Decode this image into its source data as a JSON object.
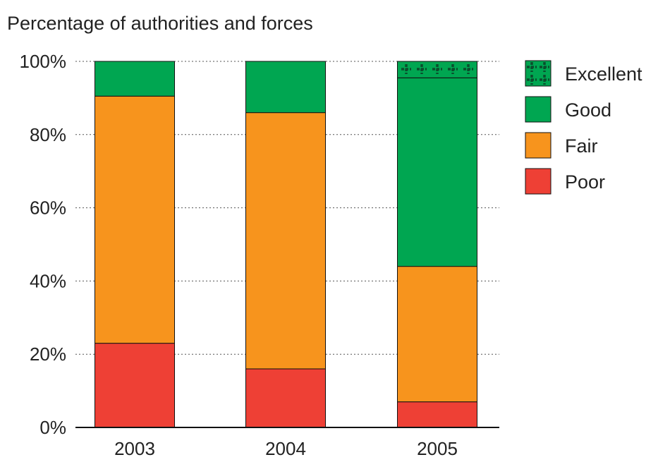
{
  "chart_data": {
    "type": "bar",
    "stacked": true,
    "title": "Percentage of authorities and forces",
    "categories": [
      "2003",
      "2004",
      "2005"
    ],
    "series": [
      {
        "name": "Poor",
        "values": [
          23,
          16,
          7
        ],
        "color": "#ee4035"
      },
      {
        "name": "Fair",
        "values": [
          67.5,
          70,
          37
        ],
        "color": "#f7941d"
      },
      {
        "name": "Good",
        "values": [
          9.5,
          14,
          51.5
        ],
        "color": "#00a651"
      },
      {
        "name": "Excellent",
        "values": [
          0,
          0,
          4.5
        ],
        "color": "#00a651",
        "pattern": "crosses"
      }
    ],
    "legend_order": [
      "Excellent",
      "Good",
      "Fair",
      "Poor"
    ],
    "legend_position": "right",
    "ylim": [
      0,
      100
    ],
    "y_ticks": [
      {
        "value": 0,
        "label": "0%"
      },
      {
        "value": 20,
        "label": "20%"
      },
      {
        "value": 40,
        "label": "40%"
      },
      {
        "value": 60,
        "label": "60%"
      },
      {
        "value": 80,
        "label": "80%"
      },
      {
        "value": 100,
        "label": "100%"
      }
    ],
    "grid": "dotted horizontal"
  }
}
